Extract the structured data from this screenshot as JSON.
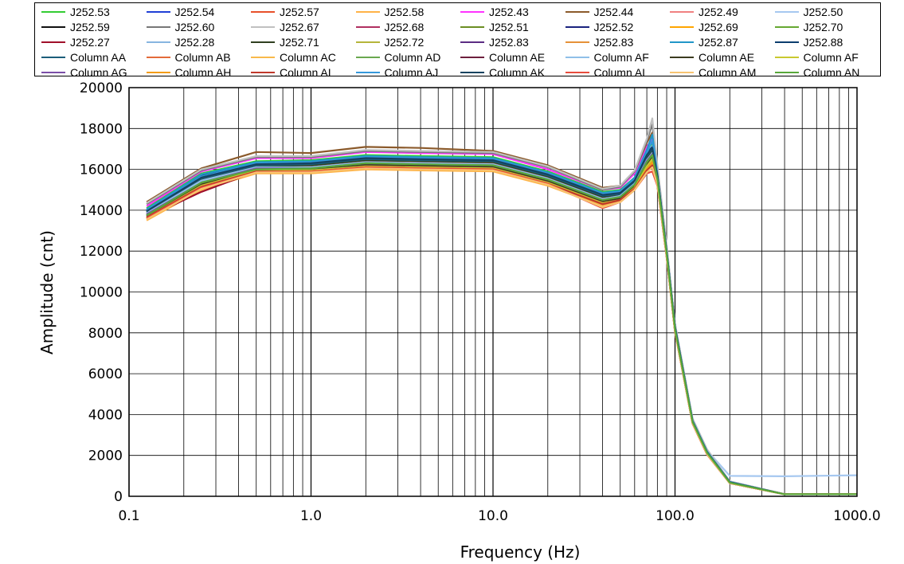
{
  "chart_data": {
    "type": "line",
    "xlabel": "Frequency  (Hz)",
    "ylabel": "Amplitude  (cnt)",
    "x_scale": "log",
    "xlim": [
      0.1,
      1000
    ],
    "ylim": [
      0,
      20000
    ],
    "grid": true,
    "legend_position": "top",
    "x_tick_labels": [
      "0.1",
      "1.0",
      "10.0",
      "100.0",
      "1000.0"
    ],
    "y_tick_labels": [
      "0",
      "2000",
      "4000",
      "6000",
      "8000",
      "10000",
      "12000",
      "14000",
      "16000",
      "18000",
      "20000"
    ],
    "x": [
      0.125,
      0.25,
      0.5,
      1,
      2,
      4,
      10,
      20,
      40,
      50,
      60,
      70,
      75,
      80,
      90,
      100,
      125,
      150,
      200,
      400,
      1000
    ],
    "series": [
      {
        "name": "J252.53",
        "color": "#33cc33",
        "values": [
          14100,
          15800,
          16400,
          16450,
          16700,
          16650,
          16600,
          15900,
          14900,
          15000,
          15600,
          16900,
          17300,
          15800,
          12000,
          8300,
          3700,
          2200,
          700,
          100,
          100
        ]
      },
      {
        "name": "J252.54",
        "color": "#1f3fd6",
        "values": [
          14000,
          15700,
          16300,
          16350,
          16600,
          16550,
          16500,
          15800,
          14800,
          14900,
          15500,
          16800,
          17100,
          15700,
          11900,
          8200,
          3650,
          2150,
          680,
          100,
          100
        ]
      },
      {
        "name": "J252.57",
        "color": "#e8502a",
        "values": [
          13600,
          15100,
          15900,
          15900,
          16100,
          16050,
          16000,
          15300,
          14300,
          14500,
          15100,
          16000,
          16400,
          15400,
          11800,
          8100,
          3600,
          2100,
          650,
          100,
          100
        ]
      },
      {
        "name": "J252.58",
        "color": "#ffb347",
        "values": [
          13500,
          15000,
          15800,
          15800,
          16000,
          15950,
          15900,
          15200,
          14200,
          14400,
          15000,
          15900,
          16200,
          15300,
          11700,
          8050,
          3550,
          2050,
          640,
          100,
          100
        ]
      },
      {
        "name": "J252.43",
        "color": "#ff33ff",
        "values": [
          14200,
          15900,
          16550,
          16550,
          16850,
          16800,
          16750,
          16000,
          15000,
          15100,
          15800,
          17100,
          17500,
          15900,
          12100,
          8400,
          3750,
          2250,
          720,
          100,
          100
        ]
      },
      {
        "name": "J252.44",
        "color": "#8b5a2b",
        "values": [
          14400,
          16050,
          16850,
          16800,
          17100,
          17050,
          16900,
          16200,
          15100,
          15200,
          15900,
          17300,
          17800,
          16000,
          12200,
          8400,
          3750,
          2250,
          720,
          100,
          100
        ]
      },
      {
        "name": "J252.49",
        "color": "#f08080",
        "values": [
          13900,
          15500,
          16100,
          16150,
          16400,
          16350,
          16300,
          15600,
          14600,
          14700,
          15300,
          16500,
          16800,
          15600,
          11900,
          8200,
          3650,
          2150,
          680,
          100,
          100
        ]
      },
      {
        "name": "J252.50",
        "color": "#a6c8f0",
        "values": [
          13800,
          15400,
          16000,
          16050,
          16300,
          16250,
          16200,
          15500,
          14500,
          14600,
          15200,
          16400,
          16700,
          15500,
          11900,
          8200,
          3700,
          2250,
          1000,
          980,
          1030
        ]
      },
      {
        "name": "J252.59",
        "color": "#111111",
        "values": [
          14000,
          15700,
          16250,
          16300,
          16550,
          16500,
          16450,
          15750,
          14750,
          14850,
          15450,
          16700,
          17000,
          15700,
          11950,
          8250,
          3650,
          2150,
          680,
          100,
          100
        ]
      },
      {
        "name": "J252.60",
        "color": "#777777",
        "values": [
          14300,
          15950,
          16600,
          16600,
          16900,
          16850,
          16800,
          16100,
          15000,
          15150,
          15900,
          17400,
          18200,
          16100,
          12200,
          8400,
          3750,
          2250,
          720,
          100,
          100
        ]
      },
      {
        "name": "J252.67",
        "color": "#c0c0c0",
        "values": [
          14350,
          16000,
          16650,
          16650,
          16950,
          16900,
          16850,
          16150,
          15050,
          15200,
          15950,
          17500,
          18500,
          16200,
          12300,
          8450,
          3800,
          2300,
          730,
          100,
          100
        ]
      },
      {
        "name": "J252.68",
        "color": "#b03060",
        "values": [
          13700,
          15200,
          15950,
          15950,
          16150,
          16100,
          16050,
          15350,
          14350,
          14550,
          15150,
          16100,
          16500,
          15400,
          11800,
          8100,
          3600,
          2100,
          650,
          100,
          100
        ]
      },
      {
        "name": "J252.51",
        "color": "#6b8e23",
        "values": [
          13800,
          15300,
          16000,
          16000,
          16250,
          16200,
          16150,
          15450,
          14450,
          14650,
          15250,
          16300,
          16600,
          15500,
          11850,
          8150,
          3620,
          2120,
          660,
          100,
          100
        ]
      },
      {
        "name": "J252.52",
        "color": "#1a237e",
        "values": [
          13950,
          15600,
          16200,
          16250,
          16500,
          16450,
          16400,
          15700,
          14700,
          14800,
          15400,
          16700,
          17000,
          15650,
          11950,
          8250,
          3650,
          2150,
          680,
          100,
          100
        ]
      },
      {
        "name": "J252.69",
        "color": "#ffa500",
        "values": [
          13550,
          15050,
          15850,
          15850,
          16050,
          16000,
          15950,
          15250,
          14250,
          14450,
          15050,
          15950,
          16300,
          15300,
          11750,
          8080,
          3580,
          2080,
          645,
          100,
          100
        ]
      },
      {
        "name": "J252.70",
        "color": "#66a832",
        "values": [
          13850,
          15450,
          16050,
          16100,
          16350,
          16300,
          16250,
          15550,
          14550,
          14700,
          15300,
          16450,
          16800,
          15550,
          11900,
          8200,
          3650,
          2150,
          670,
          100,
          100
        ]
      },
      {
        "name": "J252.27",
        "color": "#a0102a",
        "values": [
          13650,
          14900,
          15900,
          15900,
          16100,
          16050,
          16000,
          15300,
          14300,
          14500,
          15100,
          15900,
          16100,
          15200,
          11700,
          8050,
          3550,
          2050,
          640,
          100,
          100
        ]
      },
      {
        "name": "J252.28",
        "color": "#87b5e0",
        "values": [
          13750,
          15350,
          15950,
          16000,
          16250,
          16200,
          16150,
          15450,
          14450,
          14600,
          15200,
          16350,
          16700,
          15500,
          11880,
          8180,
          3640,
          2140,
          665,
          100,
          100
        ]
      },
      {
        "name": "J252.71",
        "color": "#2f3f1f",
        "values": [
          13900,
          15500,
          16150,
          16200,
          16450,
          16400,
          16350,
          15650,
          14650,
          14750,
          15350,
          16550,
          16900,
          15600,
          11920,
          8220,
          3650,
          2150,
          675,
          100,
          100
        ]
      },
      {
        "name": "J252.72",
        "color": "#b5b53a",
        "values": [
          13700,
          15250,
          15950,
          15950,
          16200,
          16150,
          16100,
          15400,
          14400,
          14550,
          15150,
          16200,
          16550,
          15450,
          11820,
          8120,
          3610,
          2110,
          655,
          100,
          100
        ]
      },
      {
        "name": "J252.83",
        "color": "#5b2c83",
        "values": [
          13850,
          15400,
          16050,
          16100,
          16350,
          16300,
          16250,
          15550,
          14550,
          14700,
          15300,
          16450,
          16800,
          15550,
          11900,
          8200,
          3640,
          2140,
          670,
          100,
          100
        ]
      },
      {
        "name": "J252.83",
        "color": "#e69138",
        "values": [
          13600,
          15100,
          15900,
          15900,
          16100,
          16050,
          16000,
          15300,
          14300,
          14500,
          15100,
          16000,
          16350,
          15350,
          11780,
          8100,
          3590,
          2090,
          650,
          100,
          100
        ]
      },
      {
        "name": "J252.87",
        "color": "#2196c8",
        "values": [
          14050,
          15750,
          16350,
          16400,
          16650,
          16600,
          16550,
          15850,
          14850,
          14950,
          15600,
          16950,
          17700,
          15750,
          12000,
          8300,
          3700,
          2200,
          700,
          100,
          100
        ]
      },
      {
        "name": "J252.88",
        "color": "#0b3d6e",
        "values": [
          13950,
          15650,
          16250,
          16300,
          16550,
          16500,
          16450,
          15750,
          14750,
          14850,
          15450,
          16750,
          17100,
          15700,
          11960,
          8260,
          3660,
          2160,
          685,
          100,
          100
        ]
      },
      {
        "name": "Column AA",
        "color": "#1b5e7a",
        "values": [
          13900,
          15550,
          16200,
          16250,
          16500,
          16450,
          16400,
          15700,
          14700,
          14800,
          15400,
          16650,
          17000,
          15650,
          11940,
          8240,
          3650,
          2150,
          680,
          100,
          100
        ]
      },
      {
        "name": "Column AB",
        "color": "#e36b3a",
        "values": [
          13650,
          15150,
          15900,
          15900,
          16100,
          16050,
          16000,
          15300,
          14250,
          14450,
          15050,
          15950,
          16300,
          15300,
          11760,
          8090,
          3580,
          2080,
          645,
          100,
          100
        ]
      },
      {
        "name": "Column AC",
        "color": "#f9b94a",
        "values": [
          13550,
          15050,
          15850,
          15850,
          16050,
          16000,
          15950,
          15250,
          14200,
          14400,
          15000,
          15900,
          16250,
          15250,
          11740,
          8070,
          3570,
          2070,
          640,
          100,
          100
        ]
      },
      {
        "name": "Column AD",
        "color": "#6aa84f",
        "values": [
          13800,
          15400,
          16050,
          16050,
          16300,
          16250,
          16200,
          15500,
          14500,
          14650,
          15250,
          16400,
          16750,
          15500,
          11880,
          8180,
          3630,
          2130,
          665,
          100,
          100
        ]
      },
      {
        "name": "Column AE",
        "color": "#6d1f3d",
        "values": [
          13700,
          15250,
          15950,
          16000,
          16200,
          16150,
          16100,
          15400,
          14400,
          14550,
          15150,
          16250,
          16600,
          15450,
          11840,
          8140,
          3620,
          2120,
          660,
          100,
          100
        ]
      },
      {
        "name": "Column AF",
        "color": "#8fbfe8",
        "values": [
          13850,
          15450,
          16100,
          16100,
          16350,
          16300,
          16250,
          15550,
          14550,
          14700,
          15300,
          16450,
          16800,
          15550,
          11900,
          8200,
          3640,
          2140,
          670,
          100,
          100
        ]
      },
      {
        "name": "Column AE",
        "color": "#3b3b1f",
        "values": [
          13750,
          15300,
          16000,
          16000,
          16250,
          16200,
          16150,
          15450,
          14450,
          14600,
          15200,
          16300,
          16650,
          15480,
          11860,
          8160,
          3625,
          2125,
          662,
          100,
          100
        ]
      },
      {
        "name": "Column AF",
        "color": "#c9c930",
        "values": [
          13650,
          15200,
          15950,
          15950,
          16150,
          16100,
          16050,
          15350,
          14350,
          14500,
          15100,
          16150,
          16500,
          15400,
          11800,
          8110,
          3600,
          2100,
          652,
          100,
          100
        ]
      },
      {
        "name": "Column AG",
        "color": "#7b4fa8",
        "values": [
          13800,
          15350,
          16050,
          16050,
          16300,
          16250,
          16200,
          15500,
          14500,
          14650,
          15250,
          16400,
          16750,
          15500,
          11880,
          8180,
          3630,
          2130,
          665,
          100,
          100
        ]
      },
      {
        "name": "Column AH",
        "color": "#f39c12",
        "values": [
          13600,
          15100,
          15900,
          15900,
          16100,
          16050,
          16000,
          15300,
          14300,
          14500,
          15100,
          16000,
          16350,
          15350,
          11780,
          8100,
          3590,
          2090,
          650,
          100,
          100
        ]
      },
      {
        "name": "Column AI",
        "color": "#c0392b",
        "values": [
          13650,
          15150,
          15900,
          15900,
          16100,
          16050,
          16000,
          15300,
          14300,
          14500,
          15050,
          15950,
          16200,
          15300,
          11750,
          8080,
          3580,
          2080,
          645,
          100,
          100
        ]
      },
      {
        "name": "Column AJ",
        "color": "#3498db",
        "values": [
          14000,
          15650,
          16300,
          16350,
          16600,
          16550,
          16500,
          15800,
          14800,
          14900,
          15500,
          16800,
          17400,
          15700,
          11980,
          8280,
          3680,
          2180,
          690,
          100,
          100
        ]
      },
      {
        "name": "Column AK",
        "color": "#154360",
        "values": [
          13950,
          15600,
          16250,
          16300,
          16550,
          16500,
          16450,
          15750,
          14750,
          14850,
          15450,
          16700,
          17050,
          15680,
          11960,
          8260,
          3660,
          2160,
          685,
          100,
          100
        ]
      },
      {
        "name": "Column AL",
        "color": "#e74c3c",
        "values": [
          13600,
          15100,
          15850,
          15900,
          16100,
          16050,
          16000,
          15300,
          14100,
          14400,
          15000,
          15800,
          15900,
          15200,
          11700,
          8050,
          3550,
          2050,
          640,
          100,
          100
        ]
      },
      {
        "name": "Column AM",
        "color": "#f8c471",
        "values": [
          13550,
          15050,
          15850,
          15850,
          16050,
          16000,
          15950,
          15250,
          14150,
          14400,
          15000,
          15850,
          16100,
          15250,
          11720,
          8060,
          3560,
          2060,
          640,
          100,
          100
        ]
      },
      {
        "name": "Column AN",
        "color": "#58a83a",
        "values": [
          13750,
          15350,
          16000,
          16050,
          16300,
          16250,
          16200,
          15500,
          14500,
          14650,
          15250,
          16350,
          16700,
          15500,
          11870,
          8170,
          3630,
          2130,
          665,
          100,
          100
        ]
      }
    ]
  }
}
